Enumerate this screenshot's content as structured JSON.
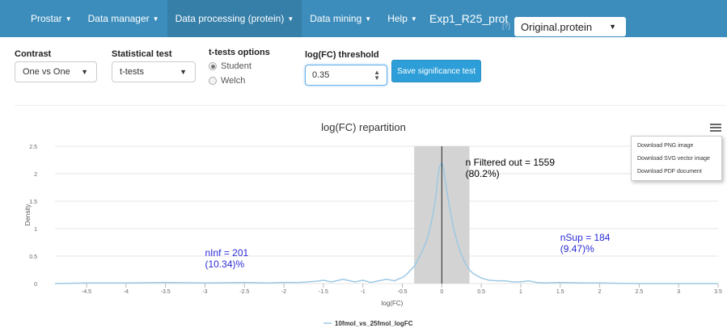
{
  "nav": {
    "items": [
      {
        "label": "Prostar",
        "has_caret": true,
        "active": false
      },
      {
        "label": "Data manager",
        "has_caret": true,
        "active": false
      },
      {
        "label": "Data processing (protein)",
        "has_caret": true,
        "active": true
      },
      {
        "label": "Data mining",
        "has_caret": true,
        "active": false
      },
      {
        "label": "Help",
        "has_caret": true,
        "active": false
      }
    ],
    "dataset_title": "Exp1_R25_prot",
    "help_marker": "[?]",
    "selected_object": "Original.protein",
    "caret": "▼"
  },
  "controls": {
    "contrast": {
      "label": "Contrast",
      "value": "One vs One"
    },
    "stat_test": {
      "label": "Statistical test",
      "value": "t-tests"
    },
    "ttest_options": {
      "label": "t-tests options",
      "options": [
        "Student",
        "Welch"
      ],
      "selected": "Student"
    },
    "logfc_threshold": {
      "label": "log(FC) threshold",
      "value": "0.35",
      "spin_up": "▲",
      "spin_down": "▼"
    },
    "save_button": "Save significance test"
  },
  "chart_menu": {
    "items": [
      "Download PNG image",
      "Download SVG vector image",
      "Download PDF document"
    ]
  },
  "colors": {
    "navbar": "#3c8dbc",
    "navbar_active": "#367fa9",
    "button": "#2e9ed8",
    "series": "#9dc8e3",
    "filtered_band": "#d3d3d3",
    "annotation_blue": "#2b2bd6"
  },
  "chart_data": {
    "type": "line",
    "title": "log(FC) repartition",
    "xlabel": "log(FC)",
    "ylabel": "Density",
    "xlim": [
      -4.9,
      3.5
    ],
    "ylim": [
      0,
      2.5
    ],
    "xticks": [
      "-4.5",
      "-4",
      "-3.5",
      "-3",
      "-2.5",
      "-2",
      "-1.5",
      "-1",
      "-0.5",
      "0",
      "0.5",
      "1",
      "1.5",
      "2",
      "2.5",
      "3",
      "3.5"
    ],
    "xtick_values": [
      -4.5,
      -4,
      -3.5,
      -3,
      -2.5,
      -2,
      -1.5,
      -1,
      -0.5,
      0,
      0.5,
      1,
      1.5,
      2,
      2.5,
      3,
      3.5
    ],
    "yticks": [
      "0",
      "0.5",
      "1",
      "1.5",
      "2",
      "2.5"
    ],
    "ytick_values": [
      0,
      0.5,
      1,
      1.5,
      2,
      2.5
    ],
    "grid": true,
    "legend_position": "bottom-center",
    "series": [
      {
        "name": "10fmol_vs_25fmol_logFC",
        "x": [
          -4.9,
          -4.5,
          -4.0,
          -3.5,
          -3.0,
          -2.5,
          -2.2,
          -2.0,
          -1.8,
          -1.6,
          -1.5,
          -1.4,
          -1.25,
          -1.1,
          -1.0,
          -0.9,
          -0.8,
          -0.7,
          -0.6,
          -0.5,
          -0.45,
          -0.4,
          -0.35,
          -0.3,
          -0.25,
          -0.2,
          -0.15,
          -0.1,
          -0.07,
          -0.05,
          -0.03,
          0.0,
          0.02,
          0.05,
          0.1,
          0.15,
          0.2,
          0.25,
          0.3,
          0.35,
          0.4,
          0.5,
          0.6,
          0.7,
          0.8,
          0.9,
          1.0,
          1.1,
          1.2,
          1.3,
          1.5,
          1.8,
          2.0,
          2.5,
          3.0,
          3.5
        ],
        "y": [
          0.0,
          0.01,
          0.01,
          0.02,
          0.01,
          0.02,
          0.01,
          0.02,
          0.02,
          0.04,
          0.06,
          0.03,
          0.08,
          0.03,
          0.06,
          0.02,
          0.05,
          0.08,
          0.05,
          0.11,
          0.16,
          0.24,
          0.31,
          0.44,
          0.58,
          0.75,
          1.0,
          1.35,
          1.65,
          1.95,
          2.12,
          2.2,
          2.1,
          1.8,
          1.38,
          1.0,
          0.73,
          0.52,
          0.36,
          0.25,
          0.18,
          0.1,
          0.06,
          0.05,
          0.05,
          0.03,
          0.03,
          0.05,
          0.02,
          0.01,
          0.02,
          0.01,
          0.01,
          0.0,
          0.0,
          0.0
        ]
      }
    ],
    "threshold": 0.35,
    "vertical_line_x": 0,
    "annotations": [
      {
        "line1": "n Filtered out = 1559",
        "line2": "(80.2%)",
        "x": 0.3,
        "y": 2.15,
        "color": "#000000"
      },
      {
        "line1": "nInf = 201",
        "line2": "(10.34)%",
        "x": -3.0,
        "y": 0.5,
        "color": "#2b2bd6"
      },
      {
        "line1": "nSup = 184",
        "line2": "(9.47)%",
        "x": 1.5,
        "y": 0.78,
        "color": "#2b2bd6"
      }
    ]
  }
}
